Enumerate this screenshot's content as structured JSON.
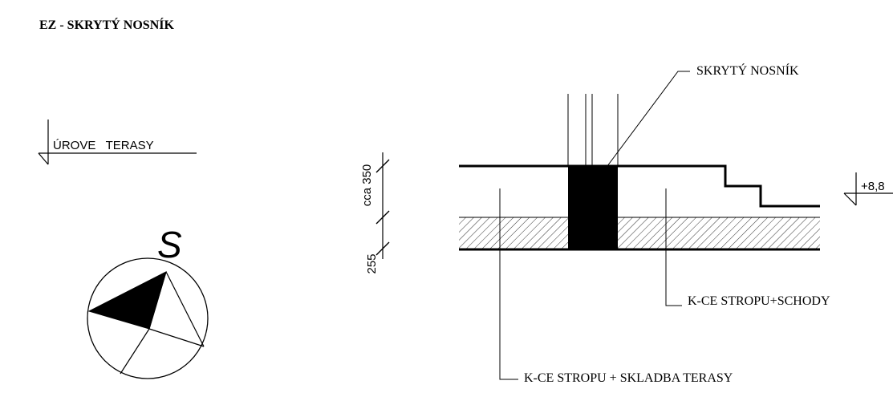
{
  "title": "EZ - SKRYTÝ NOSNÍK",
  "level_marker": {
    "label": "ÚROVE   TERASY"
  },
  "north_arrow": {
    "letter": "S"
  },
  "dimensions": {
    "upper": "cca 350",
    "lower": "255"
  },
  "elevation": {
    "label": "+8,8"
  },
  "labels": {
    "hidden_beam": "SKRYTÝ NOSNÍK",
    "floor_stairs": "K-CE STROPU+SCHODY",
    "floor_terrace": "K-CE STROPU + SKLADBA TERASY"
  },
  "colors": {
    "line": "#000000",
    "background": "#ffffff"
  }
}
